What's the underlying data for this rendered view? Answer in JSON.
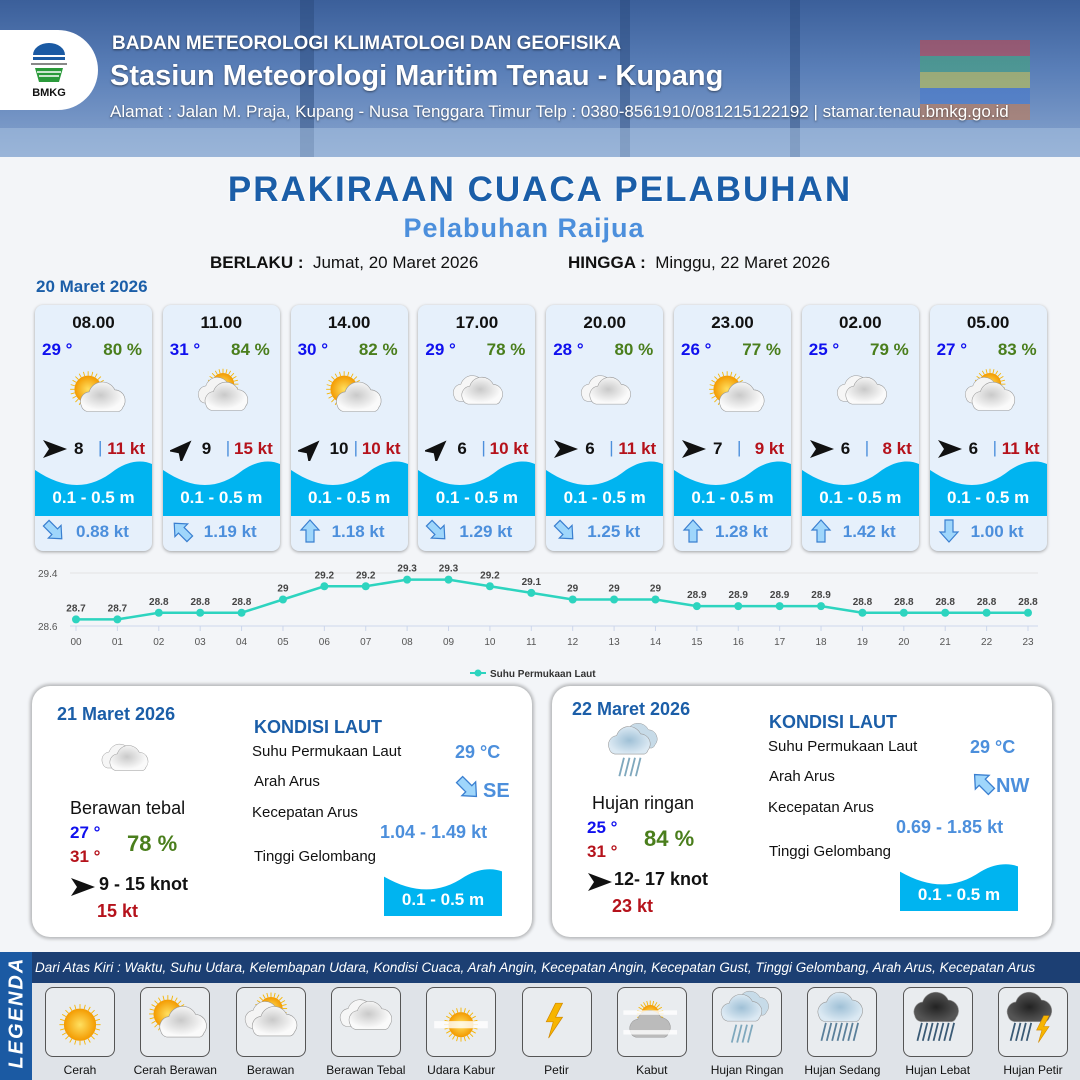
{
  "header": {
    "agency": "BADAN METEOROLOGI KLIMATOLOGI DAN GEOFISIKA",
    "station": "Stasiun Meteorologi Maritim Tenau - Kupang",
    "address": "Alamat : Jalan M. Praja, Kupang - Nusa Tenggara Timur Telp : 0380-8561910/081215122192  | stamar.tenau.bmkg.go.id",
    "logo_text": "BMKG"
  },
  "title": "PRAKIRAAN CUACA PELABUHAN",
  "subtitle": "Pelabuhan Raijua",
  "validity": {
    "from_label": "BERLAKU :",
    "from_value": "Jumat, 20 Maret 2026",
    "to_label": "HINGGA :",
    "to_value": "Minggu, 22 Maret 2026"
  },
  "day1_date": "20 Maret 2026",
  "hourly": [
    {
      "time": "08.00",
      "temp": "29 °",
      "humidity": "80 %",
      "weather": "cerah-berawan",
      "wind_dir_deg": 90,
      "wind_speed": "8",
      "gust": "11 kt",
      "wave": "0.1 - 0.5 m",
      "current_dir": "SE",
      "current_speed": "0.88 kt"
    },
    {
      "time": "11.00",
      "temp": "31 °",
      "humidity": "84 %",
      "weather": "berawan",
      "wind_dir_deg": 45,
      "wind_speed": "9",
      "gust": "15 kt",
      "wave": "0.1 - 0.5 m",
      "current_dir": "NW",
      "current_speed": "1.19 kt"
    },
    {
      "time": "14.00",
      "temp": "30 °",
      "humidity": "82 %",
      "weather": "cerah-berawan",
      "wind_dir_deg": 45,
      "wind_speed": "10",
      "gust": "10 kt",
      "wave": "0.1 - 0.5 m",
      "current_dir": "N",
      "current_speed": "1.18 kt"
    },
    {
      "time": "17.00",
      "temp": "29 °",
      "humidity": "78 %",
      "weather": "berawan-tebal",
      "wind_dir_deg": 45,
      "wind_speed": "6",
      "gust": "10 kt",
      "wave": "0.1 - 0.5 m",
      "current_dir": "SE",
      "current_speed": "1.29 kt"
    },
    {
      "time": "20.00",
      "temp": "28 °",
      "humidity": "80 %",
      "weather": "berawan-tebal",
      "wind_dir_deg": 90,
      "wind_speed": "6",
      "gust": "11 kt",
      "wave": "0.1 - 0.5 m",
      "current_dir": "SE",
      "current_speed": "1.25 kt"
    },
    {
      "time": "23.00",
      "temp": "26 °",
      "humidity": "77 %",
      "weather": "cerah-berawan",
      "wind_dir_deg": 90,
      "wind_speed": "7",
      "gust": "9 kt",
      "wave": "0.1 - 0.5 m",
      "current_dir": "N",
      "current_speed": "1.28 kt"
    },
    {
      "time": "02.00",
      "temp": "25 °",
      "humidity": "79 %",
      "weather": "berawan-tebal",
      "wind_dir_deg": 90,
      "wind_speed": "6",
      "gust": "8 kt",
      "wave": "0.1 - 0.5 m",
      "current_dir": "N",
      "current_speed": "1.42 kt"
    },
    {
      "time": "05.00",
      "temp": "27 °",
      "humidity": "83 %",
      "weather": "berawan",
      "wind_dir_deg": 90,
      "wind_speed": "6",
      "gust": "11 kt",
      "wave": "0.1 - 0.5 m",
      "current_dir": "S",
      "current_speed": "1.00 kt"
    }
  ],
  "chart_data": {
    "type": "line",
    "categories": [
      "00",
      "01",
      "02",
      "03",
      "04",
      "05",
      "06",
      "07",
      "08",
      "09",
      "10",
      "11",
      "12",
      "13",
      "14",
      "15",
      "16",
      "17",
      "18",
      "19",
      "20",
      "21",
      "22",
      "23"
    ],
    "series": [
      {
        "name": "Suhu Permukaan Laut",
        "values": [
          28.7,
          28.7,
          28.8,
          28.8,
          28.8,
          29.0,
          29.2,
          29.2,
          29.3,
          29.3,
          29.2,
          29.1,
          29.0,
          29.0,
          29.0,
          28.9,
          28.9,
          28.9,
          28.9,
          28.8,
          28.8,
          28.8,
          28.8,
          28.8
        ]
      }
    ],
    "y_ticks": [
      "28.6",
      "29.4"
    ],
    "ylim": [
      28.6,
      29.4
    ],
    "grid": true,
    "legend": "bottom",
    "color": "#2dd4bf"
  },
  "days": [
    {
      "date": "21 Maret 2026",
      "weather_label": "Berawan tebal",
      "weather": "berawan-tebal",
      "tmin": "27 °",
      "tmax": "31 °",
      "humidity": "78 %",
      "wind": "9  - 15 knot",
      "gust": "15 kt",
      "sea": {
        "title": "KONDISI LAUT",
        "sst_label": "Suhu Permukaan Laut",
        "sst": "29 °C",
        "dir_label": "Arah Arus",
        "dir": "SE",
        "speed_label": "Kecepatan Arus",
        "speed": "1.04 - 1.49 kt",
        "wave_label": "Tinggi Gelombang",
        "wave": "0.1 - 0.5 m"
      }
    },
    {
      "date": "22 Maret 2026",
      "weather_label": "Hujan ringan",
      "weather": "hujan-ringan",
      "tmin": "25 °",
      "tmax": "31 °",
      "humidity": "84 %",
      "wind": "12- 17 knot",
      "gust": "23 kt",
      "sea": {
        "title": "KONDISI LAUT",
        "sst_label": "Suhu Permukaan Laut",
        "sst": "29 °C",
        "dir_label": "Arah Arus",
        "dir": "NW",
        "speed_label": "Kecepatan Arus",
        "speed": "0.69 - 1.85 kt",
        "wave_label": "Tinggi Gelombang",
        "wave": "0.1 - 0.5 m"
      }
    }
  ],
  "legend": {
    "title": "LEGENDA",
    "description": "Dari Atas Kiri : Waktu, Suhu Udara, Kelembapan Udara, Kondisi Cuaca, Arah Angin, Kecepatan Angin, Kecepatan Gust, Tinggi Gelombang, Arah Arus, Kecepatan Arus",
    "items": [
      {
        "label": "Cerah",
        "icon": "cerah"
      },
      {
        "label": "Cerah Berawan",
        "icon": "cerah-berawan"
      },
      {
        "label": "Berawan",
        "icon": "berawan"
      },
      {
        "label": "Berawan Tebal",
        "icon": "berawan-tebal"
      },
      {
        "label": "Udara Kabur",
        "icon": "udara-kabur"
      },
      {
        "label": "Petir",
        "icon": "petir"
      },
      {
        "label": "Kabut",
        "icon": "kabut"
      },
      {
        "label": "Hujan Ringan",
        "icon": "hujan-ringan"
      },
      {
        "label": "Hujan Sedang",
        "icon": "hujan-sedang"
      },
      {
        "label": "Hujan Lebat",
        "icon": "hujan-lebat"
      },
      {
        "label": "Hujan Petir",
        "icon": "hujan-petir"
      }
    ]
  },
  "colors": {
    "brand": "#1b5ea8",
    "accent": "#4c8fdc",
    "wave": "#00b4f0",
    "temp": "#1010ee",
    "humidity": "#4a7e1c",
    "gust": "#b5121b"
  }
}
